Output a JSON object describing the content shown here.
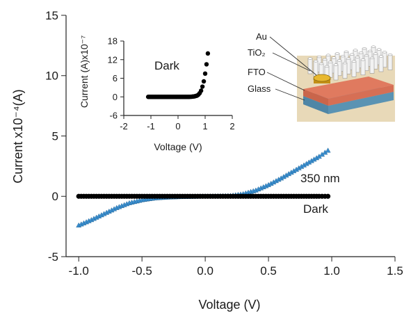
{
  "chart_data": [
    {
      "type": "line",
      "xlabel": "Voltage (V)",
      "ylabel": "Current x10⁻⁴(A)",
      "xlim": [
        -1.1,
        1.5
      ],
      "ylim": [
        -5,
        15
      ],
      "x_ticks": [
        "-1.0",
        "-0.5",
        "0.0",
        "0.5",
        "1.0",
        "1.5"
      ],
      "y_ticks": [
        "-5",
        "0",
        "5",
        "10",
        "15"
      ],
      "x_tick_values": [
        -1.0,
        -0.5,
        0.0,
        0.5,
        1.0,
        1.5
      ],
      "y_tick_values": [
        -5,
        0,
        5,
        10,
        15
      ],
      "grid": false,
      "series": [
        {
          "name": "350 nm",
          "color": "#3a8fd0",
          "marker": "triangle",
          "x": [
            -1.0,
            -0.9,
            -0.8,
            -0.7,
            -0.6,
            -0.5,
            -0.4,
            -0.3,
            -0.2,
            -0.1,
            0.0,
            0.1,
            0.2,
            0.3,
            0.4,
            0.5,
            0.6,
            0.7,
            0.8,
            0.9,
            0.97
          ],
          "values": [
            -2.4,
            -1.95,
            -1.45,
            -0.95,
            -0.55,
            -0.3,
            -0.15,
            -0.08,
            -0.04,
            -0.02,
            0.0,
            0.02,
            0.05,
            0.2,
            0.5,
            0.95,
            1.5,
            2.1,
            2.7,
            3.3,
            3.8
          ]
        },
        {
          "name": "Dark",
          "color": "#000000",
          "marker": "circle",
          "x": [
            -1.0,
            -0.9,
            -0.8,
            -0.7,
            -0.6,
            -0.5,
            -0.4,
            -0.3,
            -0.2,
            -0.1,
            0.0,
            0.1,
            0.2,
            0.3,
            0.4,
            0.5,
            0.6,
            0.7,
            0.8,
            0.9,
            0.97
          ],
          "values": [
            0,
            0,
            0,
            0,
            0,
            0,
            0,
            0,
            0,
            0,
            0,
            0,
            0,
            0,
            0,
            0,
            0,
            0,
            0,
            0,
            0
          ]
        }
      ],
      "annotations": [
        "350 nm",
        "Dark"
      ]
    },
    {
      "type": "scatter",
      "xlabel": "Voltage (V)",
      "ylabel": "Current (A)x10⁻⁷",
      "xlim": [
        -2,
        2
      ],
      "ylim": [
        -6,
        18
      ],
      "x_ticks": [
        "-2",
        "-1",
        "0",
        "1",
        "2"
      ],
      "y_ticks": [
        "-6",
        "0",
        "6",
        "12",
        "18"
      ],
      "x_tick_values": [
        -2,
        -1,
        0,
        1,
        2
      ],
      "y_tick_values": [
        -6,
        0,
        6,
        12,
        18
      ],
      "series": [
        {
          "name": "Dark",
          "color": "#000000",
          "marker": "circle",
          "x": [
            -1.1,
            -1.0,
            -0.9,
            -0.8,
            -0.7,
            -0.6,
            -0.5,
            -0.4,
            -0.3,
            -0.2,
            -0.1,
            0.0,
            0.1,
            0.2,
            0.3,
            0.4,
            0.5,
            0.6,
            0.7,
            0.75,
            0.8,
            0.85,
            0.9,
            0.95,
            1.0,
            1.05,
            1.1
          ],
          "values": [
            0,
            0,
            0,
            0,
            0,
            0,
            0,
            0,
            0,
            0,
            0,
            0,
            0,
            0,
            0,
            0,
            0.05,
            0.15,
            0.4,
            0.7,
            1.2,
            2.0,
            3.3,
            5.0,
            7.5,
            10.5,
            14.0
          ]
        }
      ],
      "annotations": [
        "Dark"
      ]
    }
  ],
  "schematic": {
    "labels": [
      "Au",
      "TiO₂",
      "FTO",
      "Glass"
    ],
    "colors": {
      "background": "#e8d9b8",
      "fto": "#e07a5f",
      "glass": "#6fa8c8",
      "rod": "#f2f2f2",
      "au": "#d9a520"
    }
  }
}
